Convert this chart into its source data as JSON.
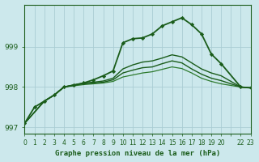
{
  "title": "Graphe pression niveau de la mer (hPa)",
  "bg_color": "#cce8ec",
  "grid_color": "#aacdd4",
  "line_color_dark": "#1a5c1a",
  "line_color_med": "#2d7a2d",
  "xlim": [
    0,
    23
  ],
  "ylim": [
    996.85,
    1000.05
  ],
  "yticks": [
    997,
    998,
    999
  ],
  "xtick_labels": [
    "0",
    "1",
    "2",
    "3",
    "4",
    "5",
    "6",
    "7",
    "8",
    "9",
    "10",
    "11",
    "12",
    "13",
    "14",
    "15",
    "16",
    "17",
    "18",
    "19",
    "20",
    "",
    "22",
    "23"
  ],
  "series": {
    "line_main": {
      "x": [
        0,
        1,
        2,
        3,
        4,
        5,
        6,
        7,
        8,
        9,
        10,
        11,
        12,
        13,
        14,
        15,
        16,
        17,
        18,
        19,
        20,
        22,
        23
      ],
      "y": [
        997.1,
        997.5,
        997.65,
        997.8,
        998.0,
        998.05,
        998.1,
        998.18,
        998.28,
        998.4,
        999.1,
        999.2,
        999.22,
        999.32,
        999.52,
        999.62,
        999.72,
        999.55,
        999.32,
        998.82,
        998.58,
        998.0,
        997.98
      ],
      "color": "#1a5c1a",
      "lw": 1.3,
      "marker": "D",
      "ms": 2.2
    },
    "line_a": {
      "x": [
        0,
        2,
        3,
        4,
        5,
        6,
        7,
        8,
        9,
        10,
        11,
        12,
        13,
        14,
        15,
        16,
        17,
        18,
        19,
        20,
        22,
        23
      ],
      "y": [
        997.1,
        997.65,
        997.8,
        998.0,
        998.05,
        998.1,
        998.12,
        998.15,
        998.22,
        998.45,
        998.55,
        998.62,
        998.65,
        998.72,
        998.8,
        998.75,
        998.6,
        998.45,
        998.35,
        998.28,
        998.0,
        997.98
      ],
      "color": "#1a5c1a",
      "lw": 1.0
    },
    "line_b": {
      "x": [
        0,
        2,
        3,
        4,
        5,
        6,
        7,
        8,
        9,
        10,
        11,
        12,
        13,
        14,
        15,
        16,
        17,
        18,
        19,
        20,
        22,
        23
      ],
      "y": [
        997.1,
        997.65,
        997.8,
        998.0,
        998.05,
        998.08,
        998.1,
        998.12,
        998.18,
        998.35,
        998.42,
        998.48,
        998.5,
        998.58,
        998.65,
        998.6,
        998.45,
        998.32,
        998.22,
        998.16,
        998.0,
        997.98
      ],
      "color": "#1a5c1a",
      "lw": 1.0
    },
    "line_c": {
      "x": [
        0,
        2,
        3,
        4,
        5,
        6,
        7,
        8,
        9,
        10,
        11,
        12,
        13,
        14,
        15,
        16,
        17,
        18,
        19,
        20,
        22,
        23
      ],
      "y": [
        997.1,
        997.65,
        997.8,
        998.0,
        998.03,
        998.06,
        998.08,
        998.1,
        998.14,
        998.25,
        998.3,
        998.35,
        998.38,
        998.44,
        998.5,
        998.46,
        998.35,
        998.22,
        998.14,
        998.08,
        998.0,
        997.98
      ],
      "color": "#2d7a2d",
      "lw": 0.9
    }
  }
}
